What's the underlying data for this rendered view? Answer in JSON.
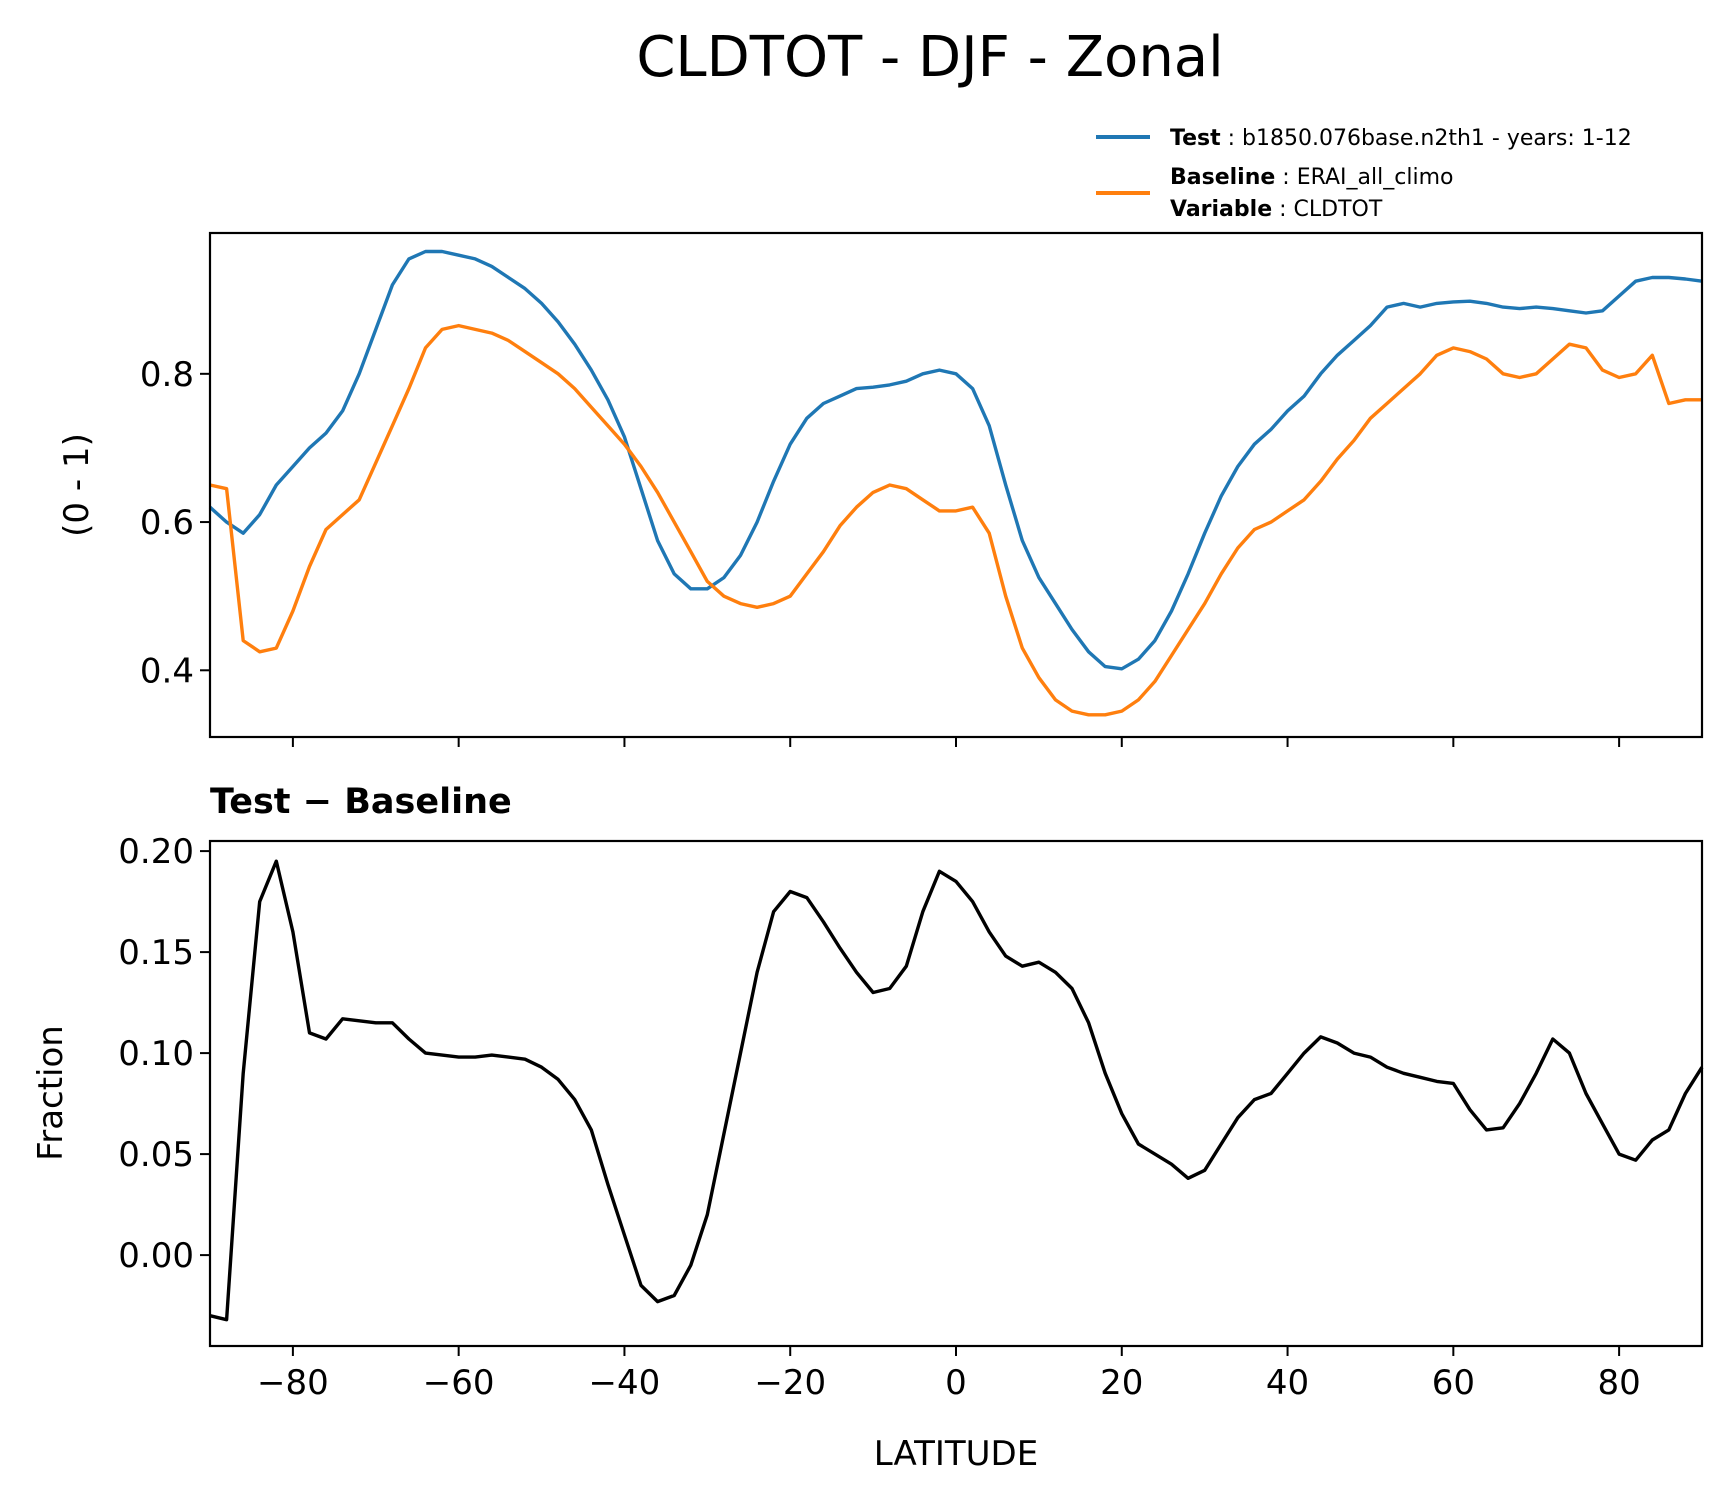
{
  "title": "CLDTOT - DJF - Zonal",
  "legend": {
    "entries": [
      {
        "key": "Test",
        "sep": " : ",
        "text": "b1850.076base.n2th1 - years: 1-12",
        "color": "#1f77b4"
      },
      {
        "key": "Baseline",
        "sep": " : ",
        "text": "ERAI_all_climo",
        "color": "#ff7f0e"
      },
      {
        "key": "Variable",
        "sep": " : ",
        "text": "CLDTOT"
      }
    ],
    "placement": "top-right, above top panel"
  },
  "chart_data": [
    {
      "type": "line",
      "panel": "top",
      "title": "",
      "xlabel": "",
      "ylabel": "(0 - 1)",
      "xlim": [
        -90,
        90
      ],
      "ylim": [
        0.31,
        0.99
      ],
      "yticks": [
        "0.4",
        "0.6",
        "0.8"
      ],
      "xticks": [
        -80,
        -60,
        -40,
        -20,
        0,
        20,
        40,
        60,
        80
      ],
      "x": [
        -90,
        -88,
        -86,
        -84,
        -82,
        -80,
        -78,
        -76,
        -74,
        -72,
        -70,
        -68,
        -66,
        -64,
        -62,
        -60,
        -58,
        -56,
        -54,
        -52,
        -50,
        -48,
        -46,
        -44,
        -42,
        -40,
        -38,
        -36,
        -34,
        -32,
        -30,
        -28,
        -26,
        -24,
        -22,
        -20,
        -18,
        -16,
        -14,
        -12,
        -10,
        -8,
        -6,
        -4,
        -2,
        0,
        2,
        4,
        6,
        8,
        10,
        12,
        14,
        16,
        18,
        20,
        22,
        24,
        26,
        28,
        30,
        32,
        34,
        36,
        38,
        40,
        42,
        44,
        46,
        48,
        50,
        52,
        54,
        56,
        58,
        60,
        62,
        64,
        66,
        68,
        70,
        72,
        74,
        76,
        78,
        80,
        82,
        84,
        86,
        88,
        90
      ],
      "series": [
        {
          "name": "Test",
          "color": "#1f77b4",
          "values": [
            0.62,
            0.6,
            0.585,
            0.61,
            0.65,
            0.675,
            0.7,
            0.72,
            0.75,
            0.8,
            0.86,
            0.92,
            0.955,
            0.965,
            0.965,
            0.96,
            0.955,
            0.945,
            0.93,
            0.915,
            0.895,
            0.87,
            0.84,
            0.805,
            0.765,
            0.715,
            0.645,
            0.575,
            0.53,
            0.51,
            0.51,
            0.525,
            0.555,
            0.6,
            0.655,
            0.705,
            0.74,
            0.76,
            0.77,
            0.78,
            0.782,
            0.785,
            0.79,
            0.8,
            0.805,
            0.8,
            0.78,
            0.73,
            0.65,
            0.575,
            0.525,
            0.49,
            0.455,
            0.425,
            0.405,
            0.402,
            0.415,
            0.44,
            0.48,
            0.53,
            0.585,
            0.635,
            0.675,
            0.705,
            0.725,
            0.75,
            0.77,
            0.8,
            0.825,
            0.845,
            0.865,
            0.89,
            0.895,
            0.89,
            0.895,
            0.897,
            0.898,
            0.895,
            0.89,
            0.888,
            0.89,
            0.888,
            0.885,
            0.882,
            0.885,
            0.905,
            0.925,
            0.93,
            0.93,
            0.928,
            0.925
          ]
        },
        {
          "name": "Baseline",
          "color": "#ff7f0e",
          "values": [
            0.65,
            0.645,
            0.44,
            0.425,
            0.43,
            0.48,
            0.54,
            0.59,
            0.61,
            0.63,
            0.68,
            0.73,
            0.78,
            0.835,
            0.86,
            0.865,
            0.86,
            0.855,
            0.845,
            0.83,
            0.815,
            0.8,
            0.78,
            0.755,
            0.73,
            0.705,
            0.675,
            0.64,
            0.6,
            0.56,
            0.52,
            0.5,
            0.49,
            0.485,
            0.49,
            0.5,
            0.53,
            0.56,
            0.595,
            0.62,
            0.64,
            0.65,
            0.645,
            0.63,
            0.615,
            0.615,
            0.62,
            0.585,
            0.5,
            0.43,
            0.39,
            0.36,
            0.345,
            0.34,
            0.34,
            0.345,
            0.36,
            0.385,
            0.42,
            0.455,
            0.49,
            0.53,
            0.565,
            0.59,
            0.6,
            0.615,
            0.63,
            0.655,
            0.685,
            0.71,
            0.74,
            0.76,
            0.78,
            0.8,
            0.825,
            0.835,
            0.83,
            0.82,
            0.8,
            0.795,
            0.8,
            0.82,
            0.84,
            0.835,
            0.805,
            0.795,
            0.8,
            0.825,
            0.76,
            0.765,
            0.765
          ]
        }
      ]
    },
    {
      "type": "line",
      "panel": "bottom",
      "title": "Test − Baseline",
      "xlabel": "LATITUDE",
      "ylabel": "Fraction",
      "xlim": [
        -90,
        90
      ],
      "ylim": [
        -0.045,
        0.205
      ],
      "yticks": [
        "0.00",
        "0.05",
        "0.10",
        "0.15",
        "0.20"
      ],
      "xticks": [
        -80,
        -60,
        -40,
        -20,
        0,
        20,
        40,
        60,
        80
      ],
      "x": [
        -90,
        -88,
        -86,
        -84,
        -82,
        -80,
        -78,
        -76,
        -74,
        -72,
        -70,
        -68,
        -66,
        -64,
        -62,
        -60,
        -58,
        -56,
        -54,
        -52,
        -50,
        -48,
        -46,
        -44,
        -42,
        -40,
        -38,
        -36,
        -34,
        -32,
        -30,
        -28,
        -26,
        -24,
        -22,
        -20,
        -18,
        -16,
        -14,
        -12,
        -10,
        -8,
        -6,
        -4,
        -2,
        0,
        2,
        4,
        6,
        8,
        10,
        12,
        14,
        16,
        18,
        20,
        22,
        24,
        26,
        28,
        30,
        32,
        34,
        36,
        38,
        40,
        42,
        44,
        46,
        48,
        50,
        52,
        54,
        56,
        58,
        60,
        62,
        64,
        66,
        68,
        70,
        72,
        74,
        76,
        78,
        80,
        82,
        84,
        86,
        88,
        90
      ],
      "series": [
        {
          "name": "Test − Baseline",
          "color": "#000000",
          "values": [
            -0.03,
            -0.032,
            0.09,
            0.175,
            0.195,
            0.16,
            0.11,
            0.107,
            0.117,
            0.116,
            0.115,
            0.115,
            0.107,
            0.1,
            0.099,
            0.098,
            0.098,
            0.099,
            0.098,
            0.097,
            0.093,
            0.087,
            0.077,
            0.062,
            0.035,
            0.01,
            -0.015,
            -0.023,
            -0.02,
            -0.005,
            0.02,
            0.06,
            0.1,
            0.14,
            0.17,
            0.18,
            0.177,
            0.165,
            0.152,
            0.14,
            0.13,
            0.132,
            0.143,
            0.17,
            0.19,
            0.185,
            0.175,
            0.16,
            0.148,
            0.143,
            0.145,
            0.14,
            0.132,
            0.115,
            0.09,
            0.07,
            0.055,
            0.05,
            0.045,
            0.038,
            0.042,
            0.055,
            0.068,
            0.077,
            0.08,
            0.09,
            0.1,
            0.108,
            0.105,
            0.1,
            0.098,
            0.093,
            0.09,
            0.088,
            0.086,
            0.085,
            0.072,
            0.062,
            0.063,
            0.075,
            0.09,
            0.107,
            0.1,
            0.08,
            0.065,
            0.05,
            0.047,
            0.057,
            0.062,
            0.08,
            0.093
          ]
        }
      ]
    }
  ]
}
